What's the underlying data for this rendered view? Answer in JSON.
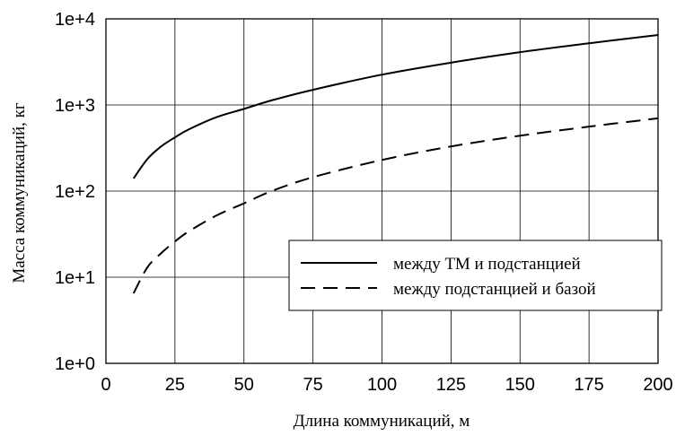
{
  "chart_data": {
    "type": "line",
    "title": "",
    "xlabel": "Длина коммуникаций, м",
    "ylabel": "Масса коммуникаций, кг",
    "xlim": [
      0,
      200
    ],
    "ylim": [
      1,
      10000
    ],
    "yscale": "log",
    "grid": true,
    "legend_position": "bottom-right",
    "x_ticks": [
      "0",
      "25",
      "50",
      "75",
      "100",
      "125",
      "150",
      "175",
      "200"
    ],
    "y_ticks": [
      "1e+0",
      "1e+1",
      "1e+2",
      "1e+3",
      "1e+4"
    ],
    "series": [
      {
        "name": "между ТМ и подстанцией",
        "style": "solid",
        "x": [
          10,
          15,
          20,
          25,
          30,
          40,
          50,
          60,
          75,
          100,
          125,
          150,
          175,
          200
        ],
        "y": [
          140,
          235,
          330,
          420,
          520,
          720,
          900,
          1130,
          1500,
          2250,
          3100,
          4100,
          5200,
          6500
        ]
      },
      {
        "name": "между подстанцией и базой",
        "style": "dashed",
        "x": [
          10,
          15,
          20,
          25,
          30,
          40,
          50,
          60,
          75,
          100,
          125,
          150,
          175,
          200
        ],
        "y": [
          6.5,
          13,
          19,
          26,
          34,
          52,
          72,
          100,
          145,
          230,
          330,
          440,
          560,
          700
        ]
      }
    ]
  }
}
